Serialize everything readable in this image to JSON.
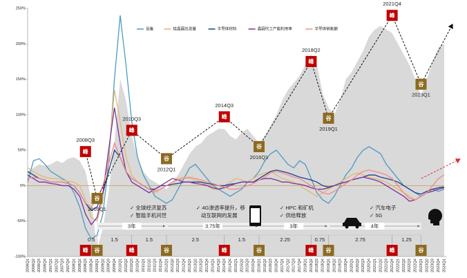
{
  "chart_data": {
    "type": "line",
    "categories": [
      "2006Q1",
      "2006Q2",
      "2006Q3",
      "2006Q4",
      "2007Q1",
      "2007Q2",
      "2007Q3",
      "2007Q4",
      "2008Q1",
      "2008Q2",
      "2008Q3",
      "2008Q4",
      "2009Q1",
      "2009Q2",
      "2009Q3",
      "2009Q4",
      "2010Q1",
      "2010Q2",
      "2010Q3",
      "2010Q4",
      "2011Q1",
      "2011Q2",
      "2011Q3",
      "2011Q4",
      "2012Q1",
      "2012Q2",
      "2012Q3",
      "2012Q4",
      "2013Q1",
      "2013Q2",
      "2013Q3",
      "2013Q4",
      "2014Q1",
      "2014Q2",
      "2014Q3",
      "2014Q4",
      "2015Q1",
      "2015Q2",
      "2015Q3",
      "2015Q4",
      "2016Q1",
      "2016Q2",
      "2016Q3",
      "2016Q4",
      "2017Q1",
      "2017Q2",
      "2017Q3",
      "2017Q4",
      "2018Q1",
      "2018Q2",
      "2018Q3",
      "2018Q4",
      "2019Q1",
      "2019Q2",
      "2019Q3",
      "2019Q4",
      "2020Q1",
      "2020Q2",
      "2020Q3",
      "2020Q4",
      "2021Q1",
      "2021Q2",
      "2021Q3",
      "2021Q4",
      "2022Q1",
      "2022Q2",
      "2022Q3",
      "2022Q4",
      "2023Q1",
      "2023Q2",
      "2023Q3",
      "2023Q4",
      "2024Q1"
    ],
    "area": {
      "color": "#d9d9d9",
      "values": [
        20,
        25,
        30,
        28,
        30,
        35,
        32,
        38,
        40,
        35,
        20,
        -20,
        -90,
        -60,
        -10,
        60,
        150,
        120,
        70,
        40,
        20,
        10,
        5,
        0,
        -5,
        5,
        15,
        30,
        45,
        55,
        60,
        70,
        75,
        80,
        80,
        70,
        65,
        75,
        80,
        70,
        60,
        70,
        85,
        100,
        120,
        135,
        145,
        155,
        170,
        185,
        170,
        130,
        110,
        100,
        120,
        150,
        160,
        175,
        190,
        210,
        220,
        225,
        220,
        215,
        200,
        185,
        170,
        150,
        125,
        150,
        175,
        195,
        200
      ]
    },
    "series": [
      {
        "name": "设备",
        "color": "#4a9bc1",
        "values": [
          5,
          35,
          38,
          30,
          20,
          15,
          10,
          5,
          -10,
          -30,
          -60,
          -75,
          -70,
          -40,
          30,
          150,
          240,
          170,
          90,
          40,
          15,
          0,
          -15,
          -20,
          -25,
          -20,
          -5,
          10,
          25,
          30,
          20,
          10,
          0,
          -5,
          -10,
          -15,
          -10,
          -5,
          5,
          10,
          20,
          35,
          45,
          50,
          40,
          30,
          25,
          35,
          30,
          10,
          -10,
          -20,
          -25,
          -15,
          0,
          15,
          25,
          40,
          50,
          55,
          50,
          45,
          30,
          20,
          10,
          0,
          -5,
          -10,
          -15,
          -10,
          -5,
          -8,
          -5
        ]
      },
      {
        "name": "硅晶圆出货量",
        "color": "#e3b96c",
        "values": [
          25,
          20,
          15,
          12,
          10,
          10,
          8,
          6,
          5,
          0,
          -20,
          -45,
          -50,
          -20,
          40,
          135,
          90,
          40,
          15,
          5,
          0,
          -5,
          -10,
          -5,
          0,
          5,
          10,
          12,
          10,
          8,
          5,
          0,
          -5,
          -5,
          0,
          5,
          10,
          8,
          5,
          10,
          15,
          18,
          20,
          15,
          10,
          8,
          5,
          0,
          -5,
          -10,
          -15,
          -10,
          -5,
          0,
          5,
          10,
          15,
          18,
          15,
          12,
          10,
          8,
          5,
          0,
          -5,
          -10,
          -15,
          -20,
          -15,
          -10,
          -5,
          -3,
          0
        ]
      },
      {
        "name": "半导体材料",
        "color": "#1f3e8c",
        "values": [
          20,
          15,
          10,
          8,
          5,
          5,
          5,
          3,
          0,
          -10,
          -25,
          -35,
          -30,
          -10,
          20,
          50,
          40,
          20,
          10,
          5,
          0,
          -5,
          -5,
          0,
          0,
          2,
          3,
          5,
          5,
          5,
          5,
          3,
          2,
          0,
          0,
          2,
          3,
          5,
          5,
          5,
          10,
          15,
          20,
          22,
          20,
          18,
          15,
          12,
          10,
          8,
          5,
          0,
          -2,
          0,
          3,
          5,
          8,
          10,
          12,
          15,
          15,
          12,
          10,
          8,
          5,
          0,
          -5,
          -10,
          -12,
          -8,
          -5,
          -3,
          -2
        ]
      },
      {
        "name": "晶圆代工产能利用率",
        "color": "#7b2f9e",
        "values": [
          15,
          10,
          5,
          5,
          3,
          2,
          0,
          0,
          -5,
          -15,
          -40,
          -55,
          -45,
          -10,
          50,
          110,
          60,
          20,
          5,
          0,
          -5,
          -10,
          -5,
          0,
          5,
          10,
          8,
          5,
          5,
          3,
          2,
          0,
          -3,
          -5,
          -3,
          0,
          3,
          5,
          5,
          5,
          8,
          10,
          10,
          8,
          5,
          5,
          3,
          2,
          0,
          -3,
          -5,
          -5,
          -3,
          0,
          3,
          5,
          8,
          10,
          12,
          10,
          8,
          5,
          0,
          -5,
          -10,
          -15,
          -22,
          -20,
          -15,
          -10,
          -8,
          -5,
          -3
        ]
      },
      {
        "name": "半导体销售额",
        "color": "#f08a8a",
        "values": [
          10,
          12,
          10,
          8,
          5,
          5,
          5,
          3,
          0,
          -10,
          -25,
          -30,
          -20,
          0,
          30,
          60,
          40,
          20,
          10,
          5,
          0,
          -5,
          -8,
          -5,
          0,
          5,
          8,
          10,
          12,
          10,
          8,
          5,
          3,
          0,
          -2,
          -5,
          -5,
          -3,
          0,
          3,
          8,
          12,
          18,
          20,
          18,
          15,
          12,
          10,
          5,
          0,
          -5,
          -10,
          -12,
          -8,
          -3,
          3,
          8,
          15,
          20,
          22,
          20,
          18,
          15,
          10,
          0,
          -10,
          -18,
          -20,
          -15,
          -10,
          0,
          10,
          15
        ]
      }
    ],
    "ylim": [
      -100,
      250
    ],
    "yticks": [
      {
        "value": -100,
        "label": "-100%"
      },
      {
        "value": -50,
        "label": "-50%"
      },
      {
        "value": 0,
        "label": "0%"
      },
      {
        "value": 50,
        "label": "50%"
      },
      {
        "value": 100,
        "label": "100%"
      },
      {
        "value": 150,
        "label": "150%"
      },
      {
        "value": 200,
        "label": "200%"
      },
      {
        "value": 250,
        "label": "250%"
      }
    ],
    "turning_points": [
      {
        "label": "2008Q3",
        "kind": "峰",
        "value": 48
      },
      {
        "label": "2009Q1",
        "kind": "谷",
        "value": -18
      },
      {
        "label": "2010Q3",
        "kind": "峰",
        "value": 78
      },
      {
        "label": "2012Q1",
        "kind": "谷",
        "value": 38
      },
      {
        "label": "2014Q3",
        "kind": "峰",
        "value": 97
      },
      {
        "label": "2016Q1",
        "kind": "谷",
        "value": 55
      },
      {
        "label": "2018Q2",
        "kind": "峰",
        "value": 175
      },
      {
        "label": "2019Q1",
        "kind": "谷",
        "value": 95
      },
      {
        "label": "2021Q4",
        "kind": "峰",
        "value": 240
      },
      {
        "label": "2023Q1",
        "kind": "谷",
        "value": 143
      }
    ],
    "phase_durations": [
      0.5,
      1.5,
      1.5,
      2.5,
      1.5,
      2.25,
      0.75,
      2.75,
      1.25
    ],
    "cycle_lengths": [
      "3年",
      "3.75年",
      "3年",
      "4年"
    ],
    "drivers": [
      [
        "✓ 全球经济复苏",
        "✓ 智能手机问世"
      ],
      [
        "✓ 4G渗透率提升，移",
        "动互联网的发展"
      ],
      [
        "✓ HPC 和矿机",
        "✓ 供给释放"
      ],
      [
        "✓ 汽车电子",
        "✓ 5G"
      ]
    ],
    "phone_label": "4G"
  }
}
